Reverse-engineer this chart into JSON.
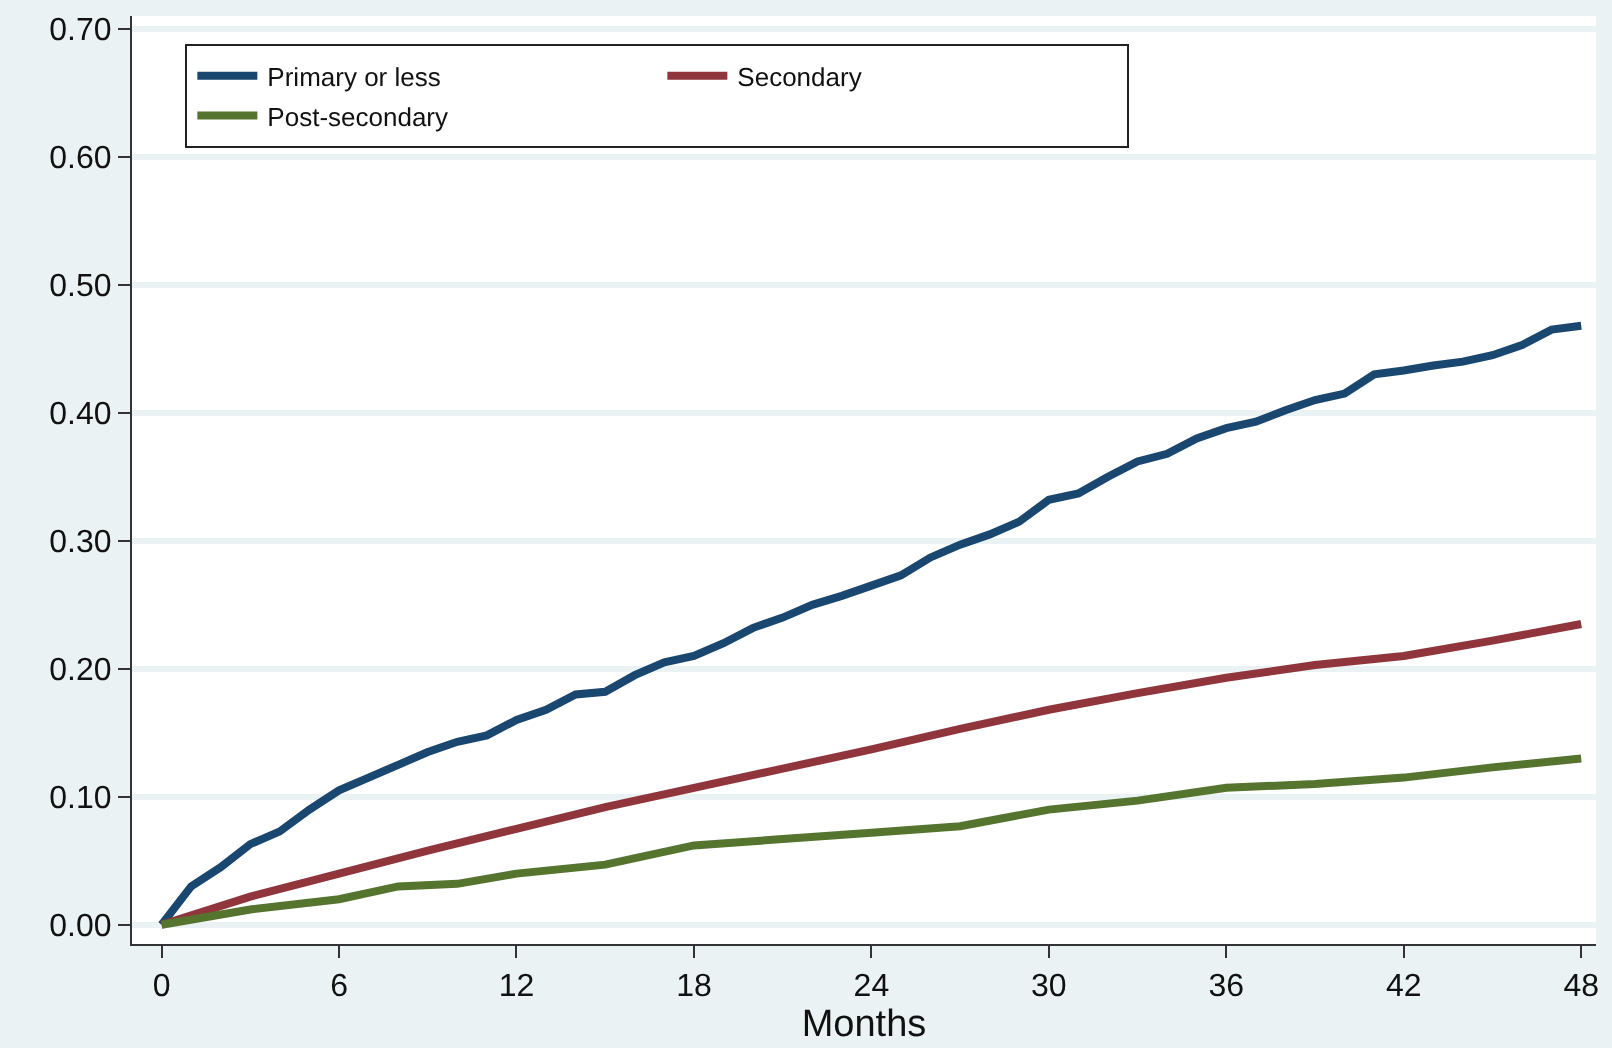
{
  "chart_data": {
    "type": "line",
    "xlabel": "Months",
    "legend": "top left",
    "grid": "y",
    "line_style": "solid",
    "xlim": [
      -1,
      48.5
    ],
    "xticks": [
      0,
      6,
      12,
      18,
      24,
      30,
      36,
      42,
      48
    ],
    "ylim": [
      -0.015,
      0.71
    ],
    "yticks": [
      {
        "value": 0,
        "label": "0.00"
      },
      {
        "value": 0.1,
        "label": "0.10"
      },
      {
        "value": 0.2,
        "label": "0.20"
      },
      {
        "value": 0.3,
        "label": "0.30"
      },
      {
        "value": 0.4,
        "label": "0.40"
      },
      {
        "value": 0.5,
        "label": "0.50"
      },
      {
        "value": 0.6,
        "label": "0.60"
      },
      {
        "value": 0.7,
        "label": "0.70"
      }
    ],
    "series": [
      {
        "name": "Primary or less",
        "color": "#1a476f",
        "x": [
          0,
          1,
          2,
          3,
          4,
          5,
          6,
          7,
          8,
          9,
          10,
          11,
          12,
          13,
          14,
          15,
          16,
          17,
          18,
          19,
          20,
          21,
          22,
          23,
          24,
          25,
          26,
          27,
          28,
          29,
          30,
          31,
          32,
          33,
          34,
          35,
          36,
          37,
          38,
          39,
          40,
          41,
          42,
          43,
          44,
          45,
          46,
          47,
          48
        ],
        "values": [
          0,
          0.03,
          0.045,
          0.063,
          0.073,
          0.09,
          0.105,
          0.115,
          0.125,
          0.135,
          0.143,
          0.148,
          0.16,
          0.168,
          0.18,
          0.182,
          0.195,
          0.205,
          0.21,
          0.22,
          0.232,
          0.24,
          0.25,
          0.257,
          0.265,
          0.273,
          0.287,
          0.297,
          0.305,
          0.315,
          0.332,
          0.337,
          0.35,
          0.362,
          0.368,
          0.38,
          0.388,
          0.393,
          0.402,
          0.41,
          0.415,
          0.43,
          0.433,
          0.437,
          0.44,
          0.445,
          0.453,
          0.465,
          0.468
        ]
      },
      {
        "name": "Secondary",
        "color": "#90353b",
        "x": [
          0,
          3,
          6,
          9,
          12,
          15,
          18,
          21,
          24,
          27,
          30,
          33,
          36,
          39,
          42,
          45,
          48
        ],
        "values": [
          0,
          0.022,
          0.04,
          0.058,
          0.075,
          0.092,
          0.107,
          0.122,
          0.137,
          0.153,
          0.168,
          0.181,
          0.193,
          0.203,
          0.21,
          0.222,
          0.235
        ]
      },
      {
        "name": "Post-secondary",
        "color": "#55752f",
        "x": [
          0,
          3,
          6,
          8,
          10,
          12,
          15,
          18,
          21,
          24,
          27,
          30,
          33,
          36,
          39,
          42,
          45,
          48
        ],
        "values": [
          0,
          0.012,
          0.02,
          0.03,
          0.032,
          0.04,
          0.047,
          0.062,
          0.067,
          0.072,
          0.077,
          0.09,
          0.097,
          0.107,
          0.11,
          0.115,
          0.123,
          0.13
        ]
      }
    ]
  }
}
